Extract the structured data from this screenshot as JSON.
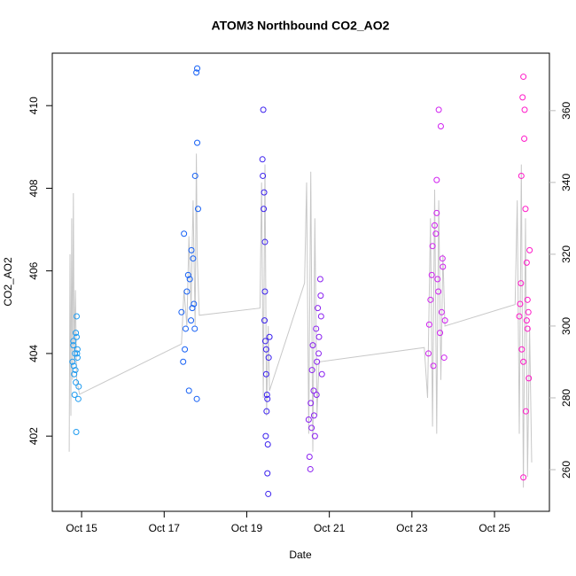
{
  "chart_data": {
    "type": "scatter",
    "title": "ATOM3 Northbound CO2_AO2",
    "x_label": "Date",
    "y_label": "CO2_AO2",
    "xlim": [
      14.29,
      26.33
    ],
    "xticks": [
      {
        "value": 15,
        "label": "Oct 15"
      },
      {
        "value": 17,
        "label": "Oct 17"
      },
      {
        "value": 19,
        "label": "Oct 19"
      },
      {
        "value": 21,
        "label": "Oct 21"
      },
      {
        "value": 23,
        "label": "Oct 23"
      },
      {
        "value": 25,
        "label": "Oct 25"
      }
    ],
    "ylim": [
      400.18,
      411.27
    ],
    "yticks": [
      402,
      404,
      406,
      408,
      410
    ],
    "y2lim": [
      248.4,
      376.0
    ],
    "y2ticks": [
      260,
      280,
      300,
      320,
      340,
      360
    ],
    "y2_color": "#bbbbbb",
    "series": [
      {
        "type": "line",
        "axis": "y2",
        "color": "#c8c8c8",
        "x": [
          14.7,
          14.72,
          14.74,
          14.76,
          14.78,
          14.8,
          14.82,
          14.85,
          14.88,
          14.95,
          17.42,
          17.48,
          17.55,
          17.6,
          17.65,
          17.7,
          17.75,
          17.78,
          17.8,
          17.85,
          19.32,
          19.36,
          19.4,
          19.44,
          19.48,
          19.52,
          19.55,
          20.4,
          20.45,
          20.5,
          20.55,
          20.6,
          20.65,
          20.7,
          20.75,
          23.3,
          23.38,
          23.45,
          23.5,
          23.55,
          23.6,
          23.65,
          23.7,
          23.75,
          23.8,
          25.5,
          25.55,
          25.6,
          25.65,
          25.7,
          25.75,
          25.8,
          25.85,
          25.9
        ],
        "values": [
          265,
          320,
          275,
          330,
          285,
          337,
          290,
          310,
          285,
          281,
          295,
          310,
          300,
          325,
          305,
          335,
          300,
          348,
          320,
          303,
          305,
          340,
          280,
          345,
          275,
          300,
          282,
          312,
          340,
          270,
          343,
          265,
          330,
          275,
          290,
          294,
          280,
          330,
          272,
          338,
          270,
          335,
          285,
          320,
          300,
          306,
          335,
          270,
          345,
          255,
          330,
          258,
          300,
          262
        ]
      },
      {
        "type": "scatter",
        "color": "#1e9bf0",
        "x": [
          14.78,
          14.8,
          14.82,
          14.84,
          14.86,
          14.88,
          14.9,
          14.92,
          14.8,
          14.85,
          14.88,
          14.83,
          14.9,
          14.87,
          14.81,
          14.86,
          14.93,
          14.89
        ],
        "values": [
          403.8,
          404.2,
          403.5,
          404.0,
          403.3,
          404.4,
          403.9,
          402.9,
          404.3,
          403.6,
          404.9,
          403.0,
          404.1,
          402.1,
          403.7,
          404.5,
          403.2,
          404.0
        ]
      },
      {
        "type": "scatter",
        "color": "#1560f5",
        "x": [
          17.42,
          17.48,
          17.52,
          17.55,
          17.6,
          17.62,
          17.65,
          17.7,
          17.72,
          17.75,
          17.78,
          17.8,
          17.82,
          17.8,
          17.79,
          17.5,
          17.58,
          17.68,
          17.74,
          17.66,
          17.46
        ],
        "values": [
          405.0,
          406.9,
          404.6,
          405.5,
          403.1,
          405.8,
          404.8,
          406.3,
          405.2,
          408.3,
          410.8,
          409.1,
          407.5,
          410.9,
          402.9,
          404.1,
          405.9,
          405.1,
          404.6,
          406.5,
          403.8
        ]
      },
      {
        "type": "scatter",
        "color": "#3a20ee",
        "x": [
          19.38,
          19.4,
          19.42,
          19.44,
          19.45,
          19.47,
          19.48,
          19.5,
          19.52,
          19.53,
          19.46,
          19.41,
          19.43,
          19.49,
          19.51,
          19.39,
          19.44,
          19.5,
          19.47,
          19.55
        ],
        "values": [
          408.7,
          409.9,
          407.9,
          405.5,
          404.3,
          403.5,
          402.6,
          401.1,
          400.6,
          403.9,
          402.0,
          407.5,
          404.8,
          403.0,
          401.8,
          408.3,
          406.7,
          402.9,
          404.1,
          404.4
        ]
      },
      {
        "type": "scatter",
        "color": "#8a20f0",
        "x": [
          20.5,
          20.52,
          20.55,
          20.58,
          20.6,
          20.62,
          20.65,
          20.68,
          20.7,
          20.72,
          20.75,
          20.78,
          20.8,
          20.82,
          20.54,
          20.63,
          20.69,
          20.74,
          20.57,
          20.79
        ],
        "values": [
          402.4,
          401.5,
          402.8,
          403.6,
          404.2,
          403.1,
          402.0,
          404.6,
          403.8,
          405.1,
          404.4,
          405.8,
          404.9,
          403.5,
          401.2,
          402.5,
          403.0,
          404.0,
          402.2,
          405.4
        ]
      },
      {
        "type": "scatter",
        "color": "#d020f0",
        "x": [
          23.4,
          23.45,
          23.5,
          23.55,
          23.6,
          23.62,
          23.65,
          23.7,
          23.72,
          23.75,
          23.8,
          23.6,
          23.52,
          23.68,
          23.58,
          23.48,
          23.78,
          23.64,
          23.42,
          23.74
        ],
        "values": [
          404.0,
          405.3,
          406.6,
          407.1,
          408.2,
          405.8,
          409.9,
          409.5,
          405.0,
          406.1,
          404.8,
          407.4,
          403.7,
          404.5,
          406.9,
          405.9,
          403.9,
          405.5,
          404.7,
          406.3
        ]
      },
      {
        "type": "scatter",
        "color": "#ff18c8",
        "x": [
          25.6,
          25.62,
          25.65,
          25.68,
          25.7,
          25.72,
          25.75,
          25.78,
          25.8,
          25.82,
          25.85,
          25.7,
          25.76,
          25.66,
          25.73,
          25.8,
          25.64,
          25.83,
          25.7,
          25.78
        ],
        "values": [
          404.9,
          405.2,
          408.3,
          410.2,
          410.7,
          409.2,
          407.5,
          406.2,
          404.6,
          405.0,
          406.5,
          403.8,
          402.6,
          404.1,
          409.9,
          405.3,
          405.7,
          403.4,
          401.0,
          404.8
        ]
      }
    ]
  }
}
